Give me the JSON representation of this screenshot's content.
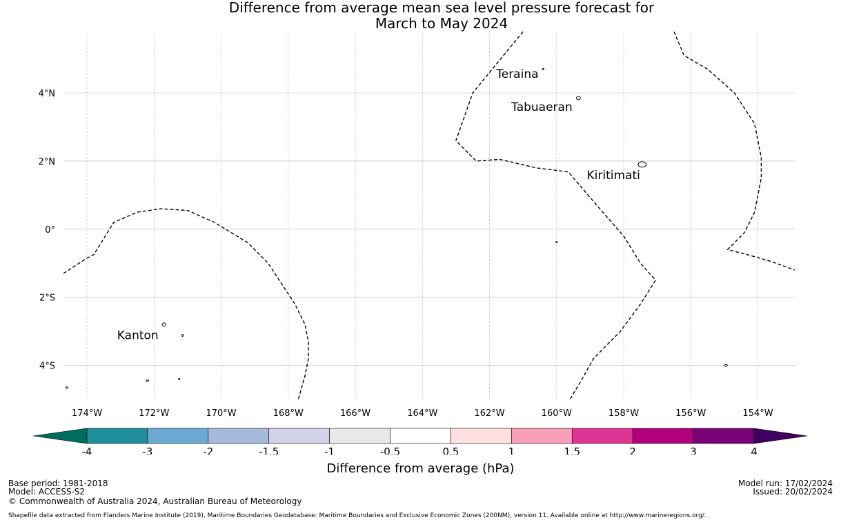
{
  "title": {
    "line1": "Difference from average mean sea level pressure forecast for",
    "line2": "March to May 2024"
  },
  "map": {
    "lon_range": [
      -174.7,
      -152.9
    ],
    "lat_range": [
      -5.0,
      5.8
    ],
    "lon_ticks": [
      {
        "value": -174,
        "label": "174°W"
      },
      {
        "value": -172,
        "label": "172°W"
      },
      {
        "value": -170,
        "label": "170°W"
      },
      {
        "value": -168,
        "label": "168°W"
      },
      {
        "value": -166,
        "label": "166°W"
      },
      {
        "value": -164,
        "label": "164°W"
      },
      {
        "value": -162,
        "label": "162°W"
      },
      {
        "value": -160,
        "label": "160°W"
      },
      {
        "value": -158,
        "label": "158°W"
      },
      {
        "value": -156,
        "label": "156°W"
      },
      {
        "value": -154,
        "label": "154°W"
      }
    ],
    "lat_ticks": [
      {
        "value": 4,
        "label": "4°N"
      },
      {
        "value": 2,
        "label": "2°N"
      },
      {
        "value": 0,
        "label": "0°"
      },
      {
        "value": -2,
        "label": "2°S"
      },
      {
        "value": -4,
        "label": "4°S"
      }
    ],
    "places": [
      {
        "name": "Teraina",
        "lon": -161.8,
        "lat": 4.45
      },
      {
        "name": "Tabuaeran",
        "lon": -161.35,
        "lat": 3.47
      },
      {
        "name": "Kiritimati",
        "lon": -159.1,
        "lat": 1.47
      },
      {
        "name": "Kanton",
        "lon": -173.1,
        "lat": -3.23
      }
    ],
    "islands": [
      {
        "lon": -159.35,
        "lat": 3.85,
        "rx": 0.06,
        "ry": 0.05
      },
      {
        "lon": -160.4,
        "lat": 4.7,
        "rx": 0.02,
        "ry": 0.02
      },
      {
        "lon": -157.45,
        "lat": 1.9,
        "rx": 0.12,
        "ry": 0.08
      },
      {
        "lon": -171.7,
        "lat": -2.8,
        "rx": 0.05,
        "ry": 0.05
      },
      {
        "lon": -171.15,
        "lat": -3.12,
        "rx": 0.015,
        "ry": 0.03
      },
      {
        "lon": -172.2,
        "lat": -4.45,
        "rx": 0.04,
        "ry": 0.02
      },
      {
        "lon": -171.25,
        "lat": -4.4,
        "rx": 0.02,
        "ry": 0.02
      },
      {
        "lon": -174.6,
        "lat": -4.65,
        "rx": 0.03,
        "ry": 0.02
      },
      {
        "lon": -160.0,
        "lat": -0.38,
        "rx": 0.02,
        "ry": 0.01
      },
      {
        "lon": -154.95,
        "lat": -4.0,
        "rx": 0.04,
        "ry": 0.03
      }
    ],
    "boundaries": [
      [
        [
          -174.7,
          -1.3
        ],
        [
          -174.0,
          -0.85
        ],
        [
          -173.8,
          -0.75
        ],
        [
          -173.2,
          0.2
        ],
        [
          -172.5,
          0.5
        ],
        [
          -171.8,
          0.6
        ],
        [
          -171.0,
          0.55
        ],
        [
          -170.2,
          0.2
        ],
        [
          -169.2,
          -0.4
        ],
        [
          -168.6,
          -1.0
        ],
        [
          -168.2,
          -1.6
        ],
        [
          -167.8,
          -2.2
        ],
        [
          -167.5,
          -2.8
        ],
        [
          -167.4,
          -3.3
        ],
        [
          -167.4,
          -3.8
        ],
        [
          -167.5,
          -4.3
        ],
        [
          -167.7,
          -5.0
        ]
      ],
      [
        [
          -161.0,
          5.8
        ],
        [
          -162.5,
          4.0
        ],
        [
          -163.0,
          2.6
        ],
        [
          -162.4,
          2.0
        ],
        [
          -161.7,
          2.05
        ],
        [
          -160.6,
          1.8
        ],
        [
          -159.65,
          1.68
        ],
        [
          -158.8,
          0.7
        ],
        [
          -158.0,
          -0.2
        ],
        [
          -157.5,
          -1.0
        ],
        [
          -157.05,
          -1.5
        ],
        [
          -157.5,
          -2.2
        ],
        [
          -158.1,
          -3.0
        ],
        [
          -158.9,
          -3.8
        ],
        [
          -159.3,
          -4.5
        ],
        [
          -159.6,
          -5.0
        ]
      ],
      [
        [
          -156.5,
          5.8
        ],
        [
          -156.2,
          5.1
        ],
        [
          -155.5,
          4.7
        ],
        [
          -154.7,
          4.0
        ],
        [
          -154.1,
          3.1
        ],
        [
          -153.9,
          2.1
        ],
        [
          -153.9,
          1.5
        ],
        [
          -154.1,
          0.5
        ],
        [
          -154.4,
          -0.1
        ],
        [
          -154.9,
          -0.6
        ],
        [
          -154.3,
          -0.75
        ],
        [
          -153.6,
          -0.95
        ],
        [
          -152.9,
          -1.2
        ]
      ]
    ]
  },
  "colorbar": {
    "min_color": "#006e5f",
    "max_color": "#400060",
    "bins": [
      {
        "color": "#1e8f9a"
      },
      {
        "color": "#6aaad3"
      },
      {
        "color": "#a6bbdc"
      },
      {
        "color": "#d2d3e8"
      },
      {
        "color": "#e9e9ea"
      },
      {
        "color": "#ffffff"
      },
      {
        "color": "#fde0df"
      },
      {
        "color": "#f89fba"
      },
      {
        "color": "#de3594"
      },
      {
        "color": "#b0007a"
      },
      {
        "color": "#7a0077"
      }
    ],
    "labels": [
      "-4",
      "-3",
      "-2",
      "-1.5",
      "-1",
      "-0.5",
      "0.5",
      "1",
      "1.5",
      "2",
      "3",
      "4"
    ],
    "title": "Difference from average (hPa)"
  },
  "footer": {
    "base_period": "Base period: 1981-2018",
    "model": "Model: ACCESS-S2",
    "copyright": "© Commonwealth of Australia 2024, Australian Bureau of Meteorology",
    "model_run": "Model run: 17/02/2024",
    "issued": "Issued: 20/02/2024",
    "shapefile": "Shapefile data extracted from Flanders Marine Institute (2019), Maritime Boundaries Geodatabase: Maritime Boundaries and Exclusive Economic Zones (200NM), version 11. Available online at http://www.marineregions.org/."
  }
}
